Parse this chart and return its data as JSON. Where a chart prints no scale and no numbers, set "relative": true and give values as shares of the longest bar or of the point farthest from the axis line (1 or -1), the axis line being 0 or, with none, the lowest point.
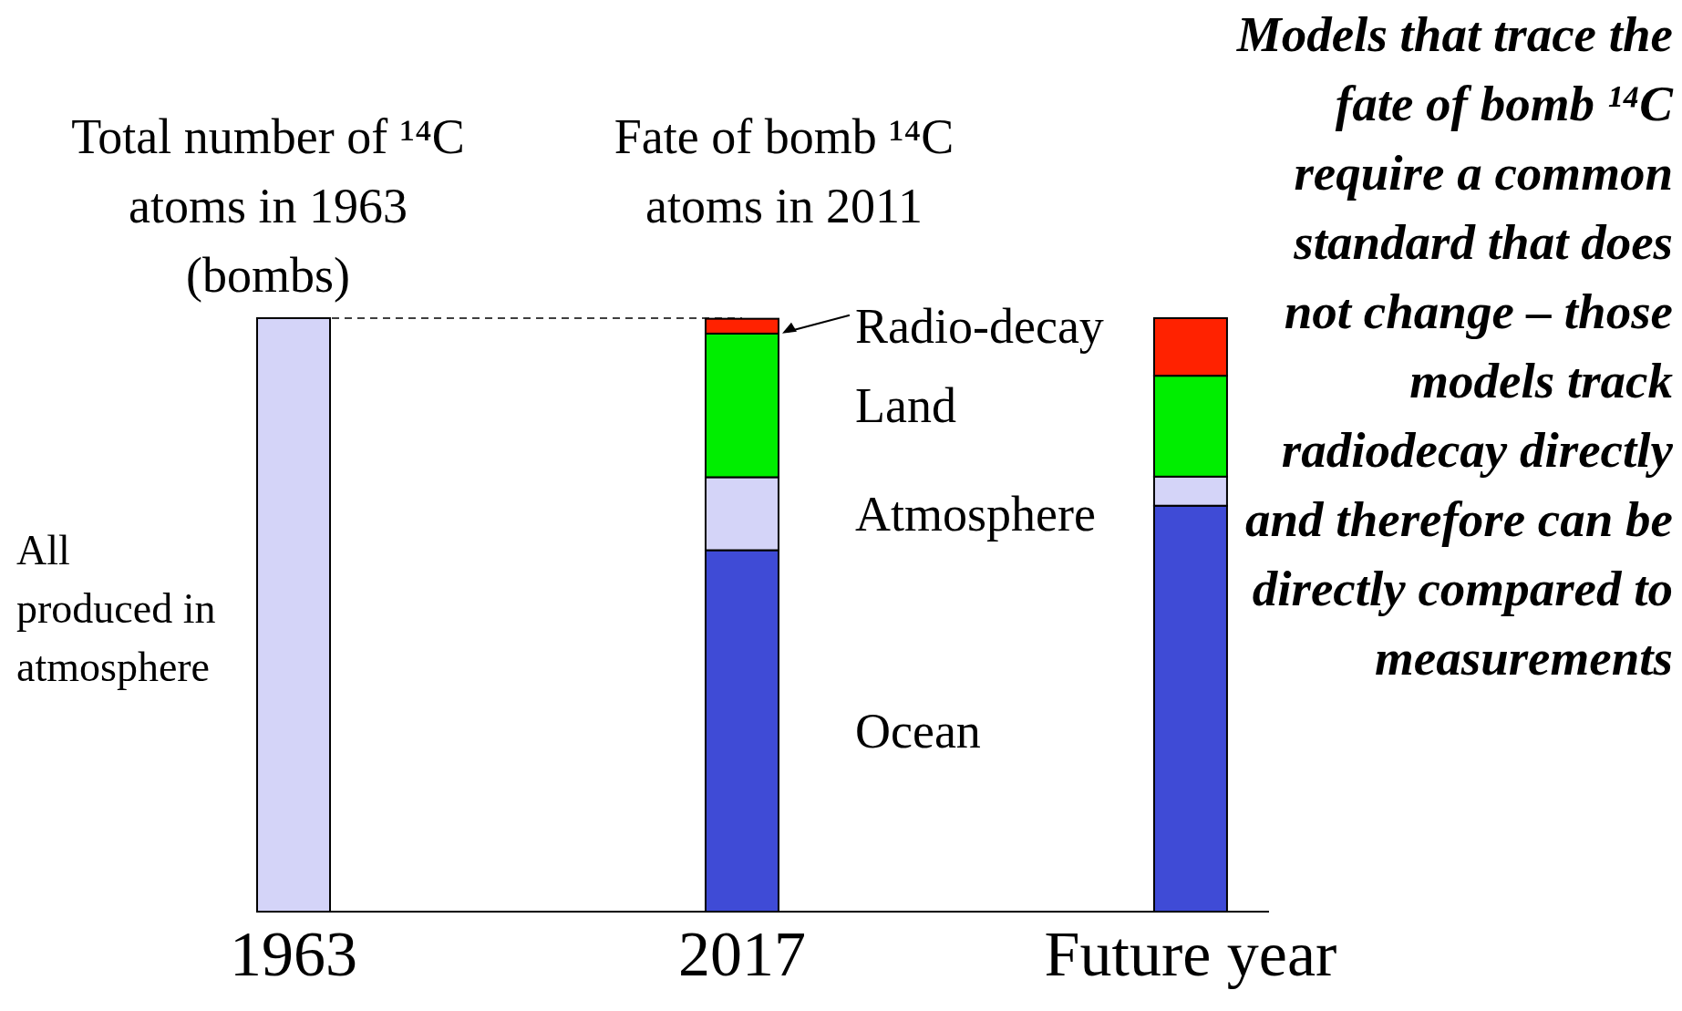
{
  "chart_data": {
    "type": "bar",
    "stacked": true,
    "relative": true,
    "categories": [
      "1963",
      "2017",
      "Future year"
    ],
    "series": [
      {
        "name": "Ocean",
        "color": "#3f4bd6",
        "values": [
          0,
          0.609,
          0.684
        ]
      },
      {
        "name": "Atmosphere",
        "color": "#d4d4f8",
        "values": [
          1,
          0.123,
          0.049
        ]
      },
      {
        "name": "Land",
        "color": "#00ee00",
        "values": [
          0,
          0.242,
          0.17
        ]
      },
      {
        "name": "Radio-decay",
        "color": "#ff2200",
        "values": [
          0,
          0.025,
          0.097
        ]
      }
    ],
    "ref_lines": [
      {
        "axis": "y",
        "value": 1,
        "color": "#000000",
        "line_style": "dashed"
      }
    ],
    "annotations": [
      "Total number of ¹⁴C atoms in 1963 (bombs)",
      "Fate of bomb ¹⁴C atoms in 2011",
      "All produced in atmosphere",
      "Models that trace the fate of bomb ¹⁴C require a common standard that does not change – those models track radiodecay directly and therefore can be directly compared to measurements"
    ]
  }
}
